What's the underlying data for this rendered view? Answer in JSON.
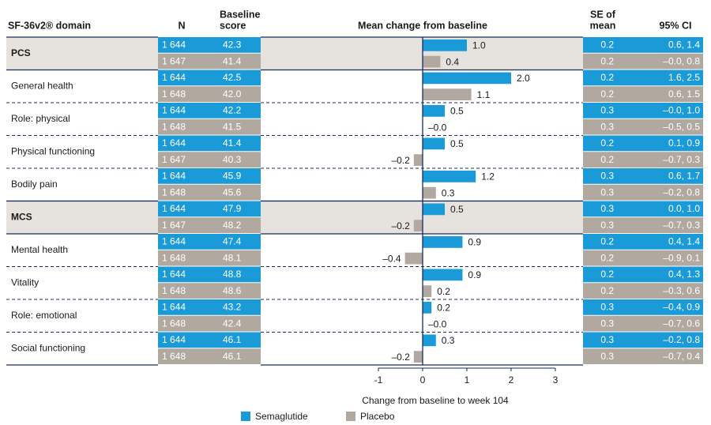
{
  "chart_data": {
    "type": "bar",
    "orientation": "horizontal",
    "headers": {
      "domain": [
        "SF-36v2® domain"
      ],
      "n": [
        "N"
      ],
      "baseline": [
        "Baseline",
        "score"
      ],
      "change": [
        "Mean change from baseline"
      ],
      "se": [
        "SE of",
        "mean"
      ],
      "ci": [
        "95% CI"
      ]
    },
    "categories": [
      "PCS",
      "General health",
      "Role: physical",
      "Physical functioning",
      "Bodily pain",
      "MCS",
      "Mental health",
      "Vitality",
      "Role: emotional",
      "Social functioning"
    ],
    "summary_rows": [
      true,
      false,
      false,
      false,
      false,
      true,
      false,
      false,
      false,
      false
    ],
    "series": [
      {
        "name": "Semaglutide",
        "color": "#1a9bd7",
        "n": [
          "1 644",
          "1 644",
          "1 644",
          "1 644",
          "1 644",
          "1 644",
          "1 644",
          "1 644",
          "1 644",
          "1 644"
        ],
        "baseline": [
          "42.3",
          "42.5",
          "42.2",
          "41.4",
          "45.9",
          "47.9",
          "47.4",
          "48.8",
          "43.2",
          "46.1"
        ],
        "values": [
          1.0,
          2.0,
          0.5,
          0.5,
          1.2,
          0.5,
          0.9,
          0.9,
          0.2,
          0.3
        ],
        "value_labels": [
          "1.0",
          "2.0",
          "0.5",
          "0.5",
          "1.2",
          "0.5",
          "0.9",
          "0.9",
          "0.2",
          "0.3"
        ],
        "se": [
          "0.2",
          "0.2",
          "0.3",
          "0.2",
          "0.3",
          "0.3",
          "0.2",
          "0.2",
          "0.3",
          "0.3"
        ],
        "ci": [
          "0.6, 1.4",
          "1.6, 2.5",
          "–0.0, 1.0",
          "0.1, 0.9",
          "0.6, 1.7",
          "0.0, 1.0",
          "0.4, 1.4",
          "0.4, 1.3",
          "–0.4, 0.9",
          "–0.2, 0.8"
        ]
      },
      {
        "name": "Placebo",
        "color": "#b1a9a0",
        "n": [
          "1 647",
          "1 648",
          "1 648",
          "1 647",
          "1 648",
          "1 647",
          "1 648",
          "1 648",
          "1 648",
          "1 648"
        ],
        "baseline": [
          "41.4",
          "42.0",
          "41.5",
          "40.3",
          "45.6",
          "48.2",
          "48.1",
          "48.6",
          "42.4",
          "46.1"
        ],
        "values": [
          0.4,
          1.1,
          0,
          -0.2,
          0.3,
          -0.2,
          -0.4,
          0.2,
          0,
          -0.2
        ],
        "value_labels": [
          "0.4",
          "1.1",
          "–0.0",
          "–0.2",
          "0.3",
          "–0.2",
          "–0.4",
          "0.2",
          "–0.0",
          "–0.2"
        ],
        "se": [
          "0.2",
          "0.2",
          "0.3",
          "0.2",
          "0.3",
          "0.3",
          "0.2",
          "0.2",
          "0.3",
          "0.3"
        ],
        "ci": [
          "–0.0, 0.8",
          "0.6, 1.5",
          "–0.5, 0.5",
          "–0.7, 0.3",
          "–0.2, 0.8",
          "–0.7, 0.3",
          "–0.9, 0.1",
          "–0.3, 0.6",
          "–0.7, 0.6",
          "–0.7, 0.4"
        ]
      }
    ],
    "xlabel": "Change from baseline to week 104",
    "xlim": [
      -1,
      3
    ],
    "xticks": [
      -1,
      0,
      1,
      2,
      3
    ],
    "legend": "bottom"
  }
}
